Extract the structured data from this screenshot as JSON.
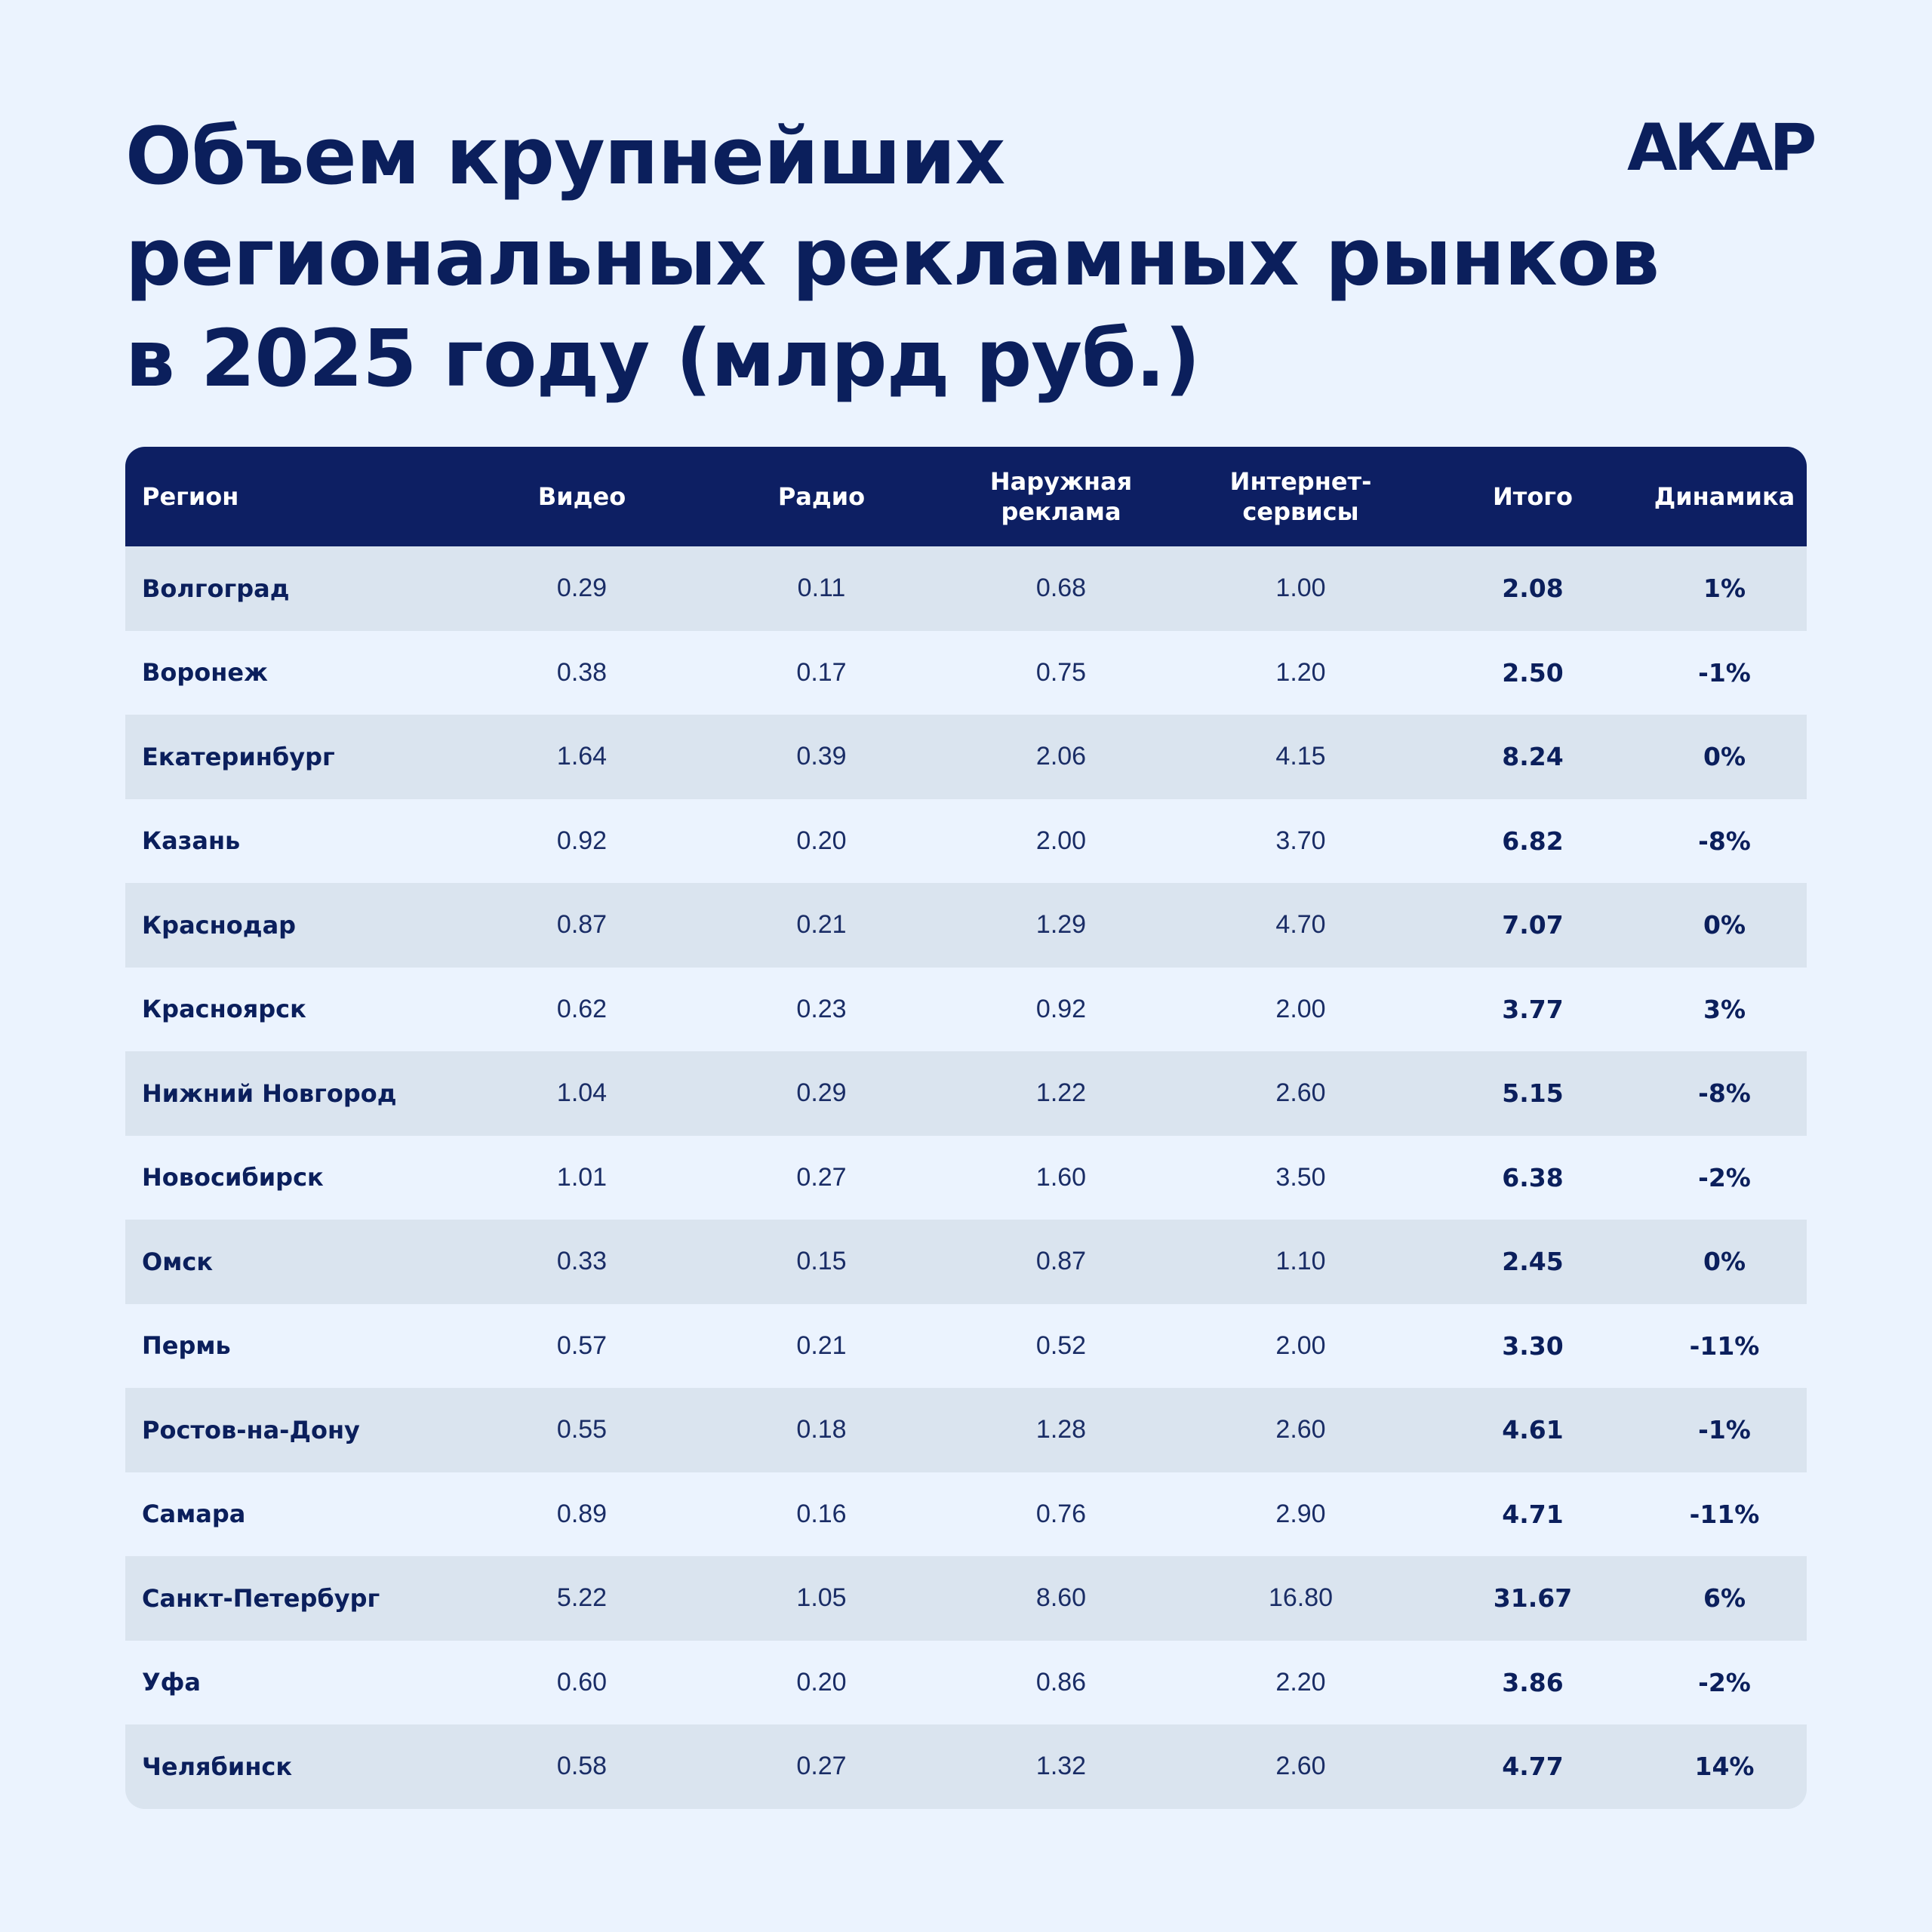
{
  "title_lines": [
    "Объем крупнейших",
    "региональных рекламных рынков",
    "в 2025 году (млрд руб.)"
  ],
  "logo": "АКАР",
  "table": {
    "headers": [
      "Регион",
      "Видео",
      "Радио",
      "Наружная реклама",
      "Интернет-сервисы",
      "Итого",
      "Динамика"
    ],
    "header_lines": [
      [
        "Регион"
      ],
      [
        "Видео"
      ],
      [
        "Радио"
      ],
      [
        "Наружная",
        "реклама"
      ],
      [
        "Интернет-",
        "сервисы"
      ],
      [
        "Итого"
      ],
      [
        "Динамика"
      ]
    ],
    "rows": [
      [
        "Волгоград",
        "0.29",
        "0.11",
        "0.68",
        "1.00",
        "2.08",
        "1%"
      ],
      [
        "Воронеж",
        "0.38",
        "0.17",
        "0.75",
        "1.20",
        "2.50",
        "-1%"
      ],
      [
        "Екатеринбург",
        "1.64",
        "0.39",
        "2.06",
        "4.15",
        "8.24",
        "0%"
      ],
      [
        "Казань",
        "0.92",
        "0.20",
        "2.00",
        "3.70",
        "6.82",
        "-8%"
      ],
      [
        "Краснодар",
        "0.87",
        "0.21",
        "1.29",
        "4.70",
        "7.07",
        "0%"
      ],
      [
        "Красноярск",
        "0.62",
        "0.23",
        "0.92",
        "2.00",
        "3.77",
        "3%"
      ],
      [
        "Нижний Новгород",
        "1.04",
        "0.29",
        "1.22",
        "2.60",
        "5.15",
        "-8%"
      ],
      [
        "Новосибирск",
        "1.01",
        "0.27",
        "1.60",
        "3.50",
        "6.38",
        "-2%"
      ],
      [
        "Омск",
        "0.33",
        "0.15",
        "0.87",
        "1.10",
        "2.45",
        "0%"
      ],
      [
        "Пермь",
        "0.57",
        "0.21",
        "0.52",
        "2.00",
        "3.30",
        "-11%"
      ],
      [
        "Ростов-на-Дону",
        "0.55",
        "0.18",
        "1.28",
        "2.60",
        "4.61",
        "-1%"
      ],
      [
        "Самара",
        "0.89",
        "0.16",
        "0.76",
        "2.90",
        "4.71",
        "-11%"
      ],
      [
        "Санкт-Петербург",
        "5.22",
        "1.05",
        "8.60",
        "16.80",
        "31.67",
        "6%"
      ],
      [
        "Уфа",
        "0.60",
        "0.20",
        "0.86",
        "2.20",
        "3.86",
        "-2%"
      ],
      [
        "Челябинск",
        "0.58",
        "0.27",
        "1.32",
        "2.60",
        "4.77",
        "14%"
      ]
    ]
  },
  "colors": {
    "background": "#ebf3fe",
    "navy": "#0d1f63",
    "row_alt": "#dae4ef"
  }
}
